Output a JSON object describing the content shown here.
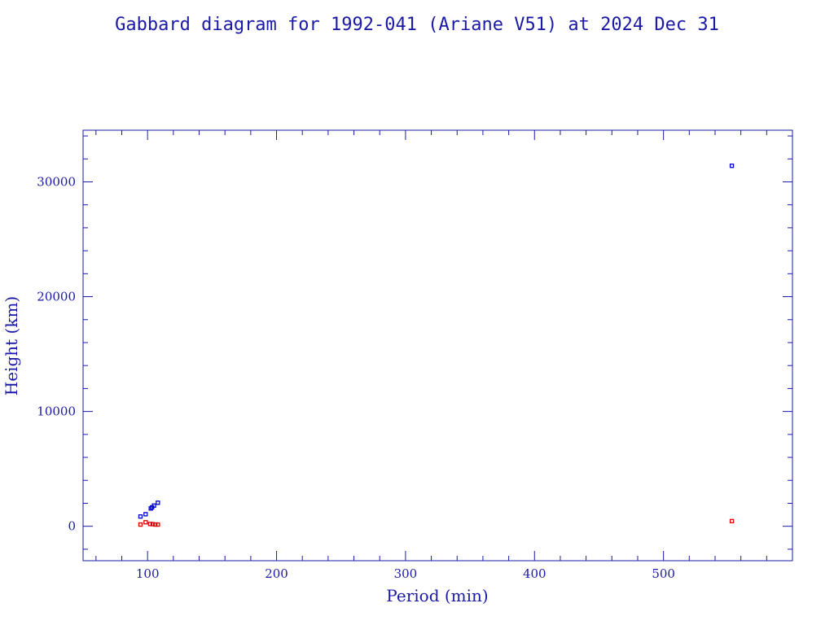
{
  "chart_data": {
    "type": "scatter",
    "title": "Gabbard diagram for 1992-041 (Ariane V51) at 2024 Dec 31",
    "xlabel": "Period (min)",
    "ylabel": "Height (km)",
    "xlim": [
      50,
      600
    ],
    "ylim": [
      -3000,
      34500
    ],
    "x_ticks": [
      100,
      200,
      300,
      400,
      500
    ],
    "x_tick_labels": [
      "100",
      "200",
      "300",
      "400",
      "500"
    ],
    "y_ticks": [
      0,
      10000,
      20000,
      30000
    ],
    "y_tick_labels": [
      "0",
      "10000",
      "20000",
      "30000"
    ],
    "x_minor_step": 20,
    "y_minor_step": 2000,
    "grid": false,
    "series": [
      {
        "color": "#0000cc",
        "points": [
          {
            "x": 94.5,
            "y": 850
          },
          {
            "x": 98.5,
            "y": 1050
          },
          {
            "x": 102.5,
            "y": 1550
          },
          {
            "x": 103.5,
            "y": 1650
          },
          {
            "x": 105,
            "y": 1800
          },
          {
            "x": 108,
            "y": 2050
          },
          {
            "x": 553,
            "y": 31400
          }
        ]
      },
      {
        "color": "#dd0000",
        "points": [
          {
            "x": 94.5,
            "y": 150
          },
          {
            "x": 98.5,
            "y": 350
          },
          {
            "x": 102,
            "y": 200
          },
          {
            "x": 104,
            "y": 180
          },
          {
            "x": 106,
            "y": 150
          },
          {
            "x": 108,
            "y": 150
          },
          {
            "x": 553,
            "y": 450
          }
        ]
      }
    ]
  }
}
